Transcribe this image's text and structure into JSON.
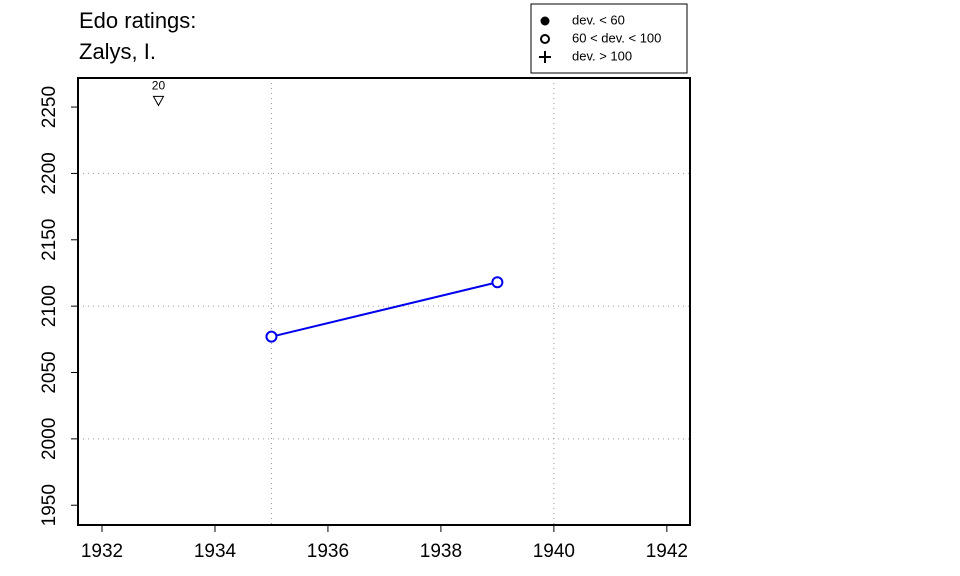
{
  "chart_data": {
    "type": "line",
    "title": [
      "Edo ratings:",
      "Zalys, I."
    ],
    "x": [
      1935,
      1939
    ],
    "series": [
      {
        "color": "#0000ee",
        "values": [
          2077,
          2118
        ],
        "marker": "open-circle"
      }
    ],
    "xlim": [
      1931.575,
      1942.41
    ],
    "ylim": [
      1935.1,
      2271.9
    ],
    "xticks": [
      1932,
      1934,
      1936,
      1938,
      1940,
      1942
    ],
    "yticks": [
      1950,
      2000,
      2050,
      2100,
      2150,
      2200,
      2250
    ],
    "xgrid": [
      1935,
      1940
    ],
    "ygrid": [
      2000,
      2100,
      2200
    ],
    "annotations": [
      {
        "x": 1933,
        "y": 2255,
        "label": "20",
        "marker": "down-triangle"
      }
    ],
    "legend": [
      {
        "symbol": "filled-circle",
        "label": "dev. < 60"
      },
      {
        "symbol": "open-circle",
        "label": "60 < dev. < 100"
      },
      {
        "symbol": "plus",
        "label": "dev. > 100"
      }
    ],
    "legend_position": "top-right"
  }
}
